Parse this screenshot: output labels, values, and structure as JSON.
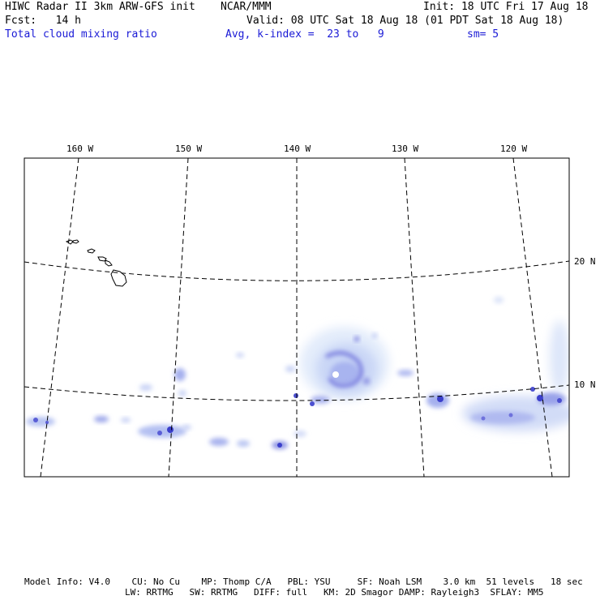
{
  "header": {
    "title": "HIWC Radar II 3km ARW-GFS init",
    "agency": "NCAR/MMM",
    "init": "Init: 18 UTC Fri 17 Aug 18",
    "fcst": "Fcst:   14 h",
    "valid": "Valid: 08 UTC Sat 18 Aug 18 (01 PDT Sat 18 Aug 18)",
    "field": "Total cloud mixing ratio",
    "avg": "Avg, k-index =  23 to   9",
    "sm": "sm= 5"
  },
  "map": {
    "longitude_labels": [
      "160 W",
      "150 W",
      "140 W",
      "130 W",
      "120 W"
    ],
    "latitude_labels": [
      "20 N",
      "10 N"
    ],
    "shading_color": "#1a1ad6",
    "frame_color": "#000000"
  },
  "footer": {
    "line1": "Model Info: V4.0    CU: No Cu    MP: Thomp C/A   PBL: YSU     SF: Noah LSM    3.0 km  51 levels   18 sec",
    "line2": "LW: RRTMG   SW: RRTMG   DIFF: full   KM: 2D Smagor DAMP: Rayleigh3  SFLAY: MM5"
  }
}
